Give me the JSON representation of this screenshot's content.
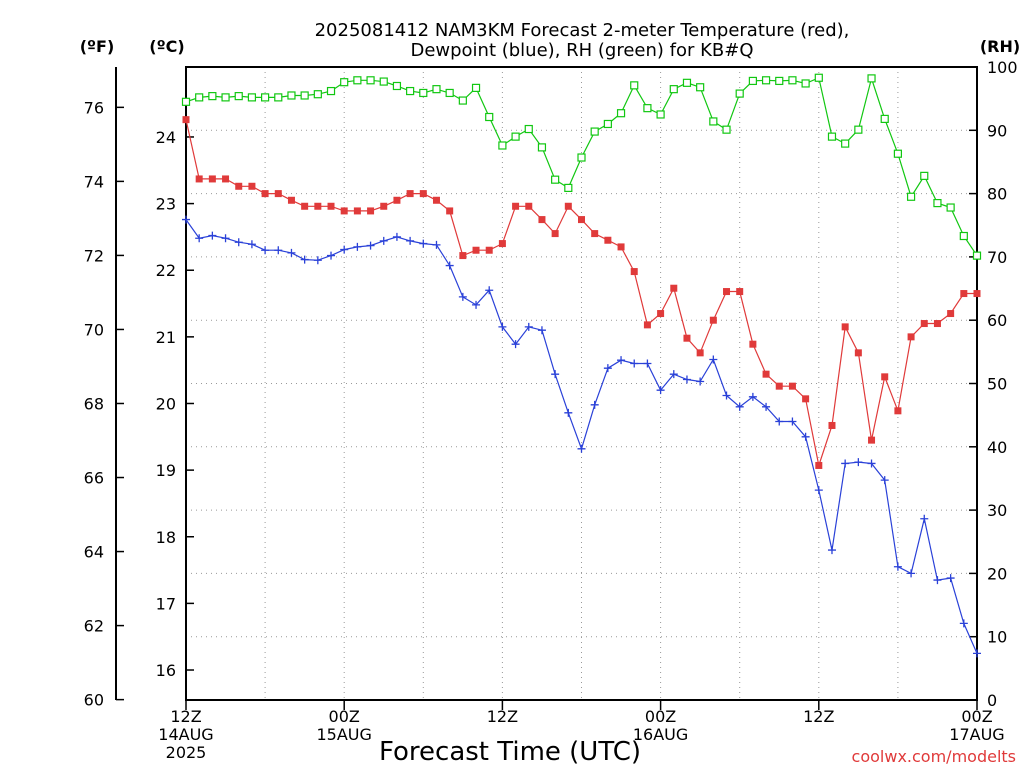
{
  "chart_data": {
    "type": "line",
    "title_line1": "2025081412 NAM3KM Forecast 2-meter Temperature (red),",
    "title_line2": "Dewpoint (blue), RH (green) for KB#Q",
    "xlabel": "Forecast Time (UTC)",
    "credit": "coolwx.com/modelts",
    "left_unit_f": "(ºF)",
    "left_unit_c": "(ºC)",
    "right_unit": "(RH)",
    "f_ticks": [
      "60",
      "62",
      "64",
      "66",
      "68",
      "70",
      "72",
      "74",
      "76"
    ],
    "c_ticks": [
      "16",
      "17",
      "18",
      "19",
      "20",
      "21",
      "22",
      "23",
      "24"
    ],
    "rh_ticks": [
      "0",
      "10",
      "20",
      "30",
      "40",
      "50",
      "60",
      "70",
      "80",
      "90",
      "100"
    ],
    "x_ticks": [
      {
        "hour": 0,
        "line1": "12Z",
        "line2": "14AUG",
        "line3": "2025"
      },
      {
        "hour": 12,
        "line1": "00Z",
        "line2": "15AUG",
        "line3": ""
      },
      {
        "hour": 24,
        "line1": "12Z",
        "line2": "",
        "line3": ""
      },
      {
        "hour": 36,
        "line1": "00Z",
        "line2": "16AUG",
        "line3": ""
      },
      {
        "hour": 48,
        "line1": "12Z",
        "line2": "",
        "line3": ""
      },
      {
        "hour": 60,
        "line1": "00Z",
        "line2": "17AUG",
        "line3": ""
      }
    ],
    "x_unit": "forecast hour",
    "xlim": [
      0,
      60
    ],
    "temp_ylim_c": [
      15.55,
      25.05
    ],
    "rh_ylim": [
      0,
      100
    ],
    "grid": true,
    "series": [
      {
        "name": "Temperature",
        "axis": "c",
        "color": "#e03a3a",
        "marker": "filled-square",
        "values": [
          24.26,
          23.37,
          23.37,
          23.37,
          23.26,
          23.26,
          23.15,
          23.15,
          23.05,
          22.96,
          22.96,
          22.96,
          22.89,
          22.89,
          22.89,
          22.96,
          23.05,
          23.15,
          23.15,
          23.05,
          22.89,
          22.22,
          22.3,
          22.3,
          22.4,
          22.96,
          22.96,
          22.76,
          22.55,
          22.96,
          22.76,
          22.55,
          22.45,
          22.35,
          21.98,
          21.18,
          21.35,
          21.73,
          20.98,
          20.76,
          21.25,
          21.68,
          21.68,
          20.89,
          20.44,
          20.26,
          20.26,
          20.07,
          19.07,
          19.67,
          21.15,
          20.76,
          19.45,
          20.4,
          19.89,
          21.0,
          21.2,
          21.2,
          21.35,
          21.65,
          21.65
        ]
      },
      {
        "name": "Dewpoint",
        "axis": "c",
        "color": "#2a41d8",
        "marker": "plus",
        "values": [
          22.76,
          22.48,
          22.52,
          22.48,
          22.42,
          22.39,
          22.3,
          22.3,
          22.26,
          22.16,
          22.15,
          22.22,
          22.31,
          22.35,
          22.37,
          22.44,
          22.5,
          22.44,
          22.4,
          22.38,
          22.07,
          21.6,
          21.48,
          21.7,
          21.15,
          20.89,
          21.15,
          21.1,
          20.44,
          19.86,
          19.32,
          19.98,
          20.53,
          20.65,
          20.6,
          20.6,
          20.2,
          20.44,
          20.36,
          20.33,
          20.66,
          20.12,
          19.95,
          20.1,
          19.95,
          19.73,
          19.73,
          19.5,
          18.7,
          17.8,
          19.1,
          19.12,
          19.1,
          18.85,
          17.55,
          17.45,
          18.27,
          17.35,
          17.38,
          16.7,
          16.25
        ]
      },
      {
        "name": "RH",
        "axis": "rh",
        "color": "#11c711",
        "marker": "open-square",
        "values": [
          94.5,
          95.2,
          95.4,
          95.2,
          95.4,
          95.2,
          95.2,
          95.2,
          95.5,
          95.5,
          95.7,
          96.2,
          97.6,
          97.9,
          97.9,
          97.7,
          97.0,
          96.2,
          95.9,
          96.5,
          95.9,
          94.7,
          96.7,
          92.1,
          87.6,
          89.0,
          90.2,
          87.3,
          82.2,
          80.9,
          85.7,
          89.8,
          91.0,
          92.7,
          97.1,
          93.5,
          92.5,
          96.5,
          97.5,
          96.8,
          91.4,
          90.1,
          95.8,
          97.8,
          97.9,
          97.8,
          97.9,
          97.4,
          98.3,
          89.0,
          87.9,
          90.1,
          98.2,
          91.8,
          86.3,
          79.5,
          82.8,
          78.5,
          77.8,
          73.3,
          70.2
        ]
      }
    ]
  }
}
